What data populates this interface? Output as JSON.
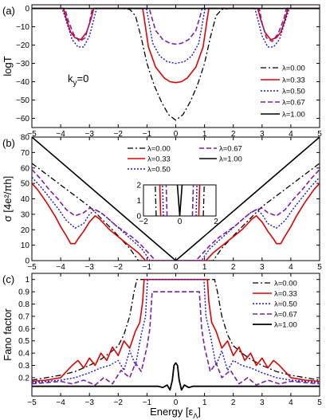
{
  "chart_data": [
    {
      "type": "line",
      "panel_label": "(a)",
      "ylabel": "logT",
      "xlim": [
        -5,
        5
      ],
      "ylim": [
        -65,
        2
      ],
      "xticks": [
        "−5",
        "−4",
        "−3",
        "−2",
        "−1",
        "0",
        "1",
        "2",
        "3",
        "4",
        "5"
      ],
      "yticks": [
        "0",
        "−10",
        "−20",
        "−30",
        "−40",
        "−50",
        "−60"
      ],
      "ytick_values": [
        0,
        -10,
        -20,
        -30,
        -40,
        -50,
        -60
      ],
      "annotation": "k",
      "annotation_sub": "y",
      "annotation_tail": "=0",
      "legend_position": "right",
      "series": [
        {
          "name": "λ=0.00",
          "color": "#000000",
          "dash": "7,3,2,3",
          "width": 1.3,
          "x": [
            -5,
            -1.9,
            -1.6,
            -1.4,
            -1.2,
            -1.0,
            -0.75,
            -0.5,
            -0.25,
            0,
            0.25,
            0.5,
            0.75,
            1.0,
            1.2,
            1.4,
            1.6,
            1.9,
            5
          ],
          "y": [
            0,
            0,
            -0.5,
            -4,
            -16,
            -30,
            -42,
            -51,
            -58,
            -61,
            -58,
            -51,
            -42,
            -30,
            -16,
            -4,
            -0.5,
            0,
            0
          ]
        },
        {
          "name": "λ=0.33",
          "color": "#e00000",
          "dash": "",
          "width": 1.6,
          "x": [
            -5,
            -3.9,
            -3.8,
            -3.65,
            -3.5,
            -3.3,
            -3.1,
            -2.95,
            -2.85,
            -1.15,
            -1.1,
            -0.95,
            -0.7,
            -0.4,
            -0.2,
            0,
            0.2,
            0.4,
            0.7,
            0.95,
            1.1,
            1.15,
            2.85,
            2.95,
            3.1,
            3.3,
            3.5,
            3.65,
            3.8,
            3.9,
            5
          ],
          "y": [
            0,
            0,
            -6,
            -13,
            -16,
            -17,
            -13,
            -6,
            0,
            0,
            -5,
            -21,
            -32,
            -38,
            -40,
            -40.5,
            -40,
            -38,
            -32,
            -21,
            -5,
            0,
            0,
            -6,
            -13,
            -17,
            -16,
            -13,
            -6,
            0,
            0
          ]
        },
        {
          "name": "λ=0.50",
          "color": "#1414d6",
          "dash": "2,2",
          "width": 1.4,
          "x": [
            -5,
            -3.95,
            -3.8,
            -3.6,
            -3.4,
            -3.2,
            -3.0,
            -2.85,
            -2.75,
            -1.02,
            -0.95,
            -0.8,
            -0.55,
            -0.3,
            0,
            0.3,
            0.55,
            0.8,
            0.95,
            1.02,
            2.75,
            2.85,
            3.0,
            3.2,
            3.4,
            3.6,
            3.8,
            3.95,
            5
          ],
          "y": [
            0,
            0,
            -7,
            -17,
            -21,
            -21,
            -15,
            -6,
            0,
            0,
            -6,
            -19,
            -26,
            -29,
            -30,
            -29,
            -26,
            -19,
            -6,
            0,
            0,
            -6,
            -15,
            -21,
            -21,
            -17,
            -7,
            0,
            0
          ]
        },
        {
          "name": "λ=0.67",
          "color": "#7a1fa8",
          "dash": "6,3",
          "width": 1.6,
          "x": [
            -5,
            -3.85,
            -3.75,
            -3.55,
            -3.35,
            -3.15,
            -3.0,
            -2.9,
            -0.92,
            -0.85,
            -0.7,
            -0.45,
            -0.2,
            0,
            0.2,
            0.45,
            0.7,
            0.85,
            0.92,
            2.9,
            3.0,
            3.15,
            3.35,
            3.55,
            3.75,
            3.85,
            5
          ],
          "y": [
            0,
            0,
            -6,
            -14,
            -18,
            -16,
            -8,
            0,
            0,
            -4,
            -12,
            -17,
            -19,
            -19.5,
            -19,
            -17,
            -12,
            -4,
            0,
            0,
            -8,
            -16,
            -18,
            -14,
            -6,
            0,
            0
          ]
        },
        {
          "name": "λ=1.00",
          "color": "#000000",
          "dash": "",
          "width": 1.6,
          "x": [
            -5,
            5
          ],
          "y": [
            0,
            0
          ]
        }
      ]
    },
    {
      "type": "line",
      "panel_label": "(b)",
      "ylabel": "σ [4e²/πh]",
      "xlim": [
        -5,
        5
      ],
      "ylim": [
        0,
        80
      ],
      "xticks": [
        "−5",
        "−4",
        "−3",
        "−2",
        "−1",
        "0",
        "1",
        "2",
        "3",
        "4",
        "5"
      ],
      "yticks": [
        "0",
        "10",
        "20",
        "30",
        "40",
        "50",
        "60",
        "70",
        "80"
      ],
      "ytick_values": [
        0,
        10,
        20,
        30,
        40,
        50,
        60,
        70,
        80
      ],
      "legend_position": "top",
      "inset": {
        "xlim": [
          -2,
          2
        ],
        "ylim": [
          0,
          2
        ],
        "xticks": [
          "−2",
          "0",
          "2"
        ],
        "yticks": [
          "0",
          "1",
          "2"
        ]
      },
      "series": [
        {
          "name": "λ=0.00",
          "color": "#000000",
          "dash": "7,3,2,3",
          "width": 1.3,
          "x": [
            -5,
            -4,
            -3,
            -2.2,
            -1.6,
            -1.3,
            1.3,
            1.6,
            2.2,
            3,
            4,
            5
          ],
          "y": [
            63,
            49,
            35,
            20,
            8,
            0,
            0,
            8,
            20,
            35,
            49,
            63
          ]
        },
        {
          "name": "λ=0.33",
          "color": "#e00000",
          "dash": "",
          "width": 1.6,
          "x": [
            -5,
            -4.8,
            -4.5,
            -4.2,
            -4.0,
            -3.8,
            -3.65,
            -3.5,
            -3.4,
            -3.2,
            -3.0,
            -2.8,
            -2.65,
            -2.5,
            -2.3,
            -2.1,
            -1.9,
            -1.7,
            -1.5,
            -1.3,
            -1.15,
            -1.05,
            1.05,
            1.15,
            1.3,
            1.5,
            1.7,
            1.9,
            2.1,
            2.3,
            2.5,
            2.65,
            2.8,
            3.0,
            3.2,
            3.4,
            3.5,
            3.65,
            3.8,
            4.0,
            4.2,
            4.5,
            4.8,
            5
          ],
          "y": [
            50,
            46,
            38,
            29,
            22,
            16,
            11,
            11,
            14,
            19,
            25,
            29,
            27,
            24,
            20,
            17,
            14,
            11,
            8,
            5,
            2,
            0,
            0,
            2,
            5,
            8,
            11,
            14,
            17,
            20,
            24,
            27,
            29,
            25,
            19,
            14,
            11,
            11,
            16,
            22,
            29,
            38,
            46,
            50
          ]
        },
        {
          "name": "λ=0.50",
          "color": "#1414d6",
          "dash": "2,2",
          "width": 1.4,
          "x": [
            -5,
            -4.7,
            -4.4,
            -4.1,
            -3.8,
            -3.5,
            -3.2,
            -3.0,
            -2.8,
            -2.6,
            -2.4,
            -2.1,
            -1.8,
            -1.5,
            -1.2,
            -1.0,
            -0.9,
            0.9,
            1.0,
            1.2,
            1.5,
            1.8,
            2.1,
            2.4,
            2.6,
            2.8,
            3.0,
            3.2,
            3.5,
            3.8,
            4.1,
            4.4,
            4.7,
            5
          ],
          "y": [
            54,
            48,
            41,
            34,
            26,
            21,
            24,
            30,
            33,
            31,
            28,
            23,
            18,
            13,
            8,
            3,
            0,
            0,
            3,
            8,
            13,
            18,
            23,
            28,
            31,
            33,
            30,
            24,
            21,
            26,
            34,
            41,
            48,
            54
          ]
        },
        {
          "name": "λ=0.67",
          "color": "#7a1fa8",
          "dash": "6,3",
          "width": 1.6,
          "x": [
            -5,
            -4.7,
            -4.4,
            -4.1,
            -3.8,
            -3.5,
            -3.2,
            -3.0,
            -2.8,
            -2.6,
            -2.4,
            -2.1,
            -1.8,
            -1.5,
            -1.2,
            -1.0,
            -0.85,
            -0.7,
            0.7,
            0.85,
            1.0,
            1.2,
            1.5,
            1.8,
            2.1,
            2.4,
            2.6,
            2.8,
            3.0,
            3.2,
            3.5,
            3.8,
            4.1,
            4.4,
            4.7,
            5
          ],
          "y": [
            59,
            53,
            46,
            40,
            33,
            29,
            31,
            34,
            33,
            31,
            28,
            23,
            19,
            15,
            10,
            6,
            3,
            0,
            0,
            3,
            6,
            10,
            15,
            19,
            23,
            28,
            31,
            33,
            34,
            31,
            29,
            33,
            40,
            46,
            53,
            59
          ]
        },
        {
          "name": "λ=1.00",
          "color": "#000000",
          "dash": "",
          "width": 1.6,
          "x": [
            -5,
            -2.5,
            0,
            2.5,
            5
          ],
          "y": [
            80,
            40,
            0,
            40,
            80
          ]
        }
      ]
    },
    {
      "type": "line",
      "panel_label": "(c)",
      "ylabel": "Fano factor",
      "xlabel": "Energy [ε",
      "xlabel_sub": "Λ",
      "xlabel_tail": "]",
      "xlim": [
        -5,
        5
      ],
      "ylim": [
        0.05,
        1.05
      ],
      "xticks": [
        "−5",
        "−4",
        "−3",
        "−2",
        "−1",
        "0",
        "1",
        "2",
        "3",
        "4",
        "5"
      ],
      "yticks": [
        "0.2",
        "0.3",
        "0.4",
        "0.5",
        "0.6",
        "0.7",
        "0.8",
        "0.9",
        "1"
      ],
      "ytick_values": [
        0.2,
        0.3,
        0.4,
        0.5,
        0.6,
        0.7,
        0.8,
        0.9,
        1.0
      ],
      "legend_position": "right",
      "series": [
        {
          "name": "λ=0.00",
          "color": "#000000",
          "dash": "7,3,2,3",
          "width": 1.3,
          "x": [
            -5,
            -4.5,
            -4,
            -3.5,
            -3,
            -2.6,
            -2.3,
            -2.0,
            -1.8,
            -1.6,
            -1.45,
            -1.35,
            1.35,
            1.45,
            1.6,
            1.8,
            2.0,
            2.3,
            2.6,
            3,
            3.5,
            4,
            4.5,
            5
          ],
          "y": [
            0.18,
            0.2,
            0.22,
            0.25,
            0.3,
            0.35,
            0.4,
            0.46,
            0.55,
            0.7,
            0.9,
            1.0,
            1.0,
            0.9,
            0.7,
            0.55,
            0.46,
            0.4,
            0.35,
            0.3,
            0.25,
            0.22,
            0.2,
            0.18
          ]
        },
        {
          "name": "λ=0.33",
          "color": "#e00000",
          "dash": "",
          "width": 1.6,
          "x": [
            -5,
            -4.5,
            -4.0,
            -3.6,
            -3.4,
            -3.2,
            -3.0,
            -2.8,
            -2.6,
            -2.4,
            -2.2,
            -2.0,
            -1.8,
            -1.6,
            -1.4,
            -1.25,
            -1.15,
            -1.1,
            1.1,
            1.15,
            1.25,
            1.4,
            1.6,
            1.8,
            2.0,
            2.2,
            2.4,
            2.6,
            2.8,
            3.0,
            3.2,
            3.4,
            3.6,
            4.0,
            4.5,
            5
          ],
          "y": [
            0.17,
            0.18,
            0.2,
            0.3,
            0.34,
            0.28,
            0.36,
            0.3,
            0.4,
            0.34,
            0.45,
            0.38,
            0.5,
            0.44,
            0.58,
            0.65,
            0.82,
            1.0,
            1.0,
            0.82,
            0.65,
            0.58,
            0.44,
            0.5,
            0.38,
            0.45,
            0.34,
            0.4,
            0.3,
            0.36,
            0.28,
            0.34,
            0.3,
            0.2,
            0.18,
            0.17
          ]
        },
        {
          "name": "λ=0.50",
          "color": "#1414d6",
          "dash": "2,2",
          "width": 1.4,
          "x": [
            -5,
            -4.5,
            -4.0,
            -3.5,
            -3.0,
            -2.6,
            -2.3,
            -2.0,
            -1.8,
            -1.6,
            -1.4,
            -1.2,
            -1.05,
            -0.98,
            0.98,
            1.05,
            1.2,
            1.4,
            1.6,
            1.8,
            2.0,
            2.3,
            2.6,
            3.0,
            3.5,
            4.0,
            4.5,
            5
          ],
          "y": [
            0.16,
            0.17,
            0.18,
            0.2,
            0.24,
            0.28,
            0.3,
            0.34,
            0.26,
            0.42,
            0.3,
            0.55,
            0.7,
            1.0,
            1.0,
            0.7,
            0.55,
            0.3,
            0.42,
            0.26,
            0.34,
            0.3,
            0.28,
            0.24,
            0.2,
            0.18,
            0.17,
            0.16
          ]
        },
        {
          "name": "λ=0.67",
          "color": "#7a1fa8",
          "dash": "6,3",
          "width": 1.6,
          "x": [
            -5,
            -4.5,
            -4.0,
            -3.6,
            -3.2,
            -2.8,
            -2.5,
            -2.2,
            -1.9,
            -1.6,
            -1.4,
            -1.2,
            -1.0,
            -0.9,
            -0.82,
            0.82,
            0.9,
            1.0,
            1.2,
            1.4,
            1.6,
            1.9,
            2.2,
            2.5,
            2.8,
            3.2,
            3.6,
            4.0,
            4.5,
            5
          ],
          "y": [
            0.15,
            0.16,
            0.17,
            0.15,
            0.18,
            0.14,
            0.2,
            0.15,
            0.26,
            0.2,
            0.32,
            0.25,
            0.45,
            0.6,
            0.9,
            0.9,
            0.6,
            0.45,
            0.25,
            0.32,
            0.2,
            0.26,
            0.15,
            0.2,
            0.14,
            0.18,
            0.15,
            0.17,
            0.16,
            0.15
          ]
        },
        {
          "name": "λ=1.00",
          "color": "#000000",
          "dash": "",
          "width": 1.8,
          "x": [
            -5,
            -0.6,
            -0.45,
            -0.3,
            -0.2,
            -0.12,
            -0.06,
            0,
            0.06,
            0.12,
            0.2,
            0.3,
            0.45,
            0.6,
            5
          ],
          "y": [
            0.13,
            0.13,
            0.12,
            0.14,
            0.1,
            0.18,
            0.3,
            0.32,
            0.3,
            0.18,
            0.1,
            0.14,
            0.12,
            0.13,
            0.13
          ]
        }
      ]
    }
  ]
}
